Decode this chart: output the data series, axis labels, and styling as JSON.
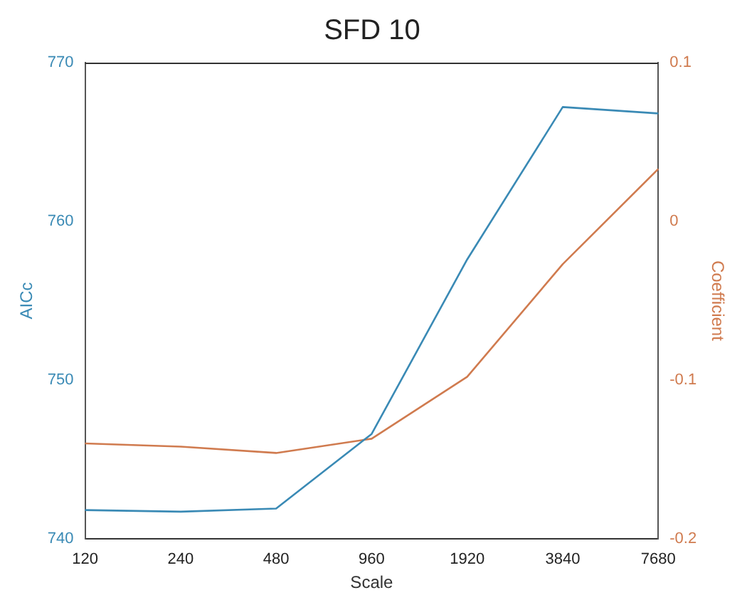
{
  "chart_data": {
    "type": "line",
    "title": "SFD 10",
    "xlabel": "Scale",
    "ylabel": "AICc",
    "y2label": "Coefficient",
    "categories": [
      "120",
      "240",
      "480",
      "960",
      "1920",
      "3840",
      "7680"
    ],
    "series": [
      {
        "color": "#3a8ab5",
        "values": [
          741.8,
          741.7,
          741.9,
          746.6,
          757.6,
          767.2,
          766.8
        ]
      },
      {
        "color": "#d07b4f",
        "axis": "y2",
        "values": [
          -0.14,
          -0.142,
          -0.146,
          -0.137,
          -0.098,
          -0.027,
          0.033
        ]
      }
    ],
    "ylim": [
      740,
      770
    ],
    "yticks": [
      740,
      750,
      760,
      770
    ],
    "y2lim": [
      -0.2,
      0.1
    ],
    "y2ticks": [
      -0.2,
      -0.1,
      0,
      0.1
    ],
    "grid": false,
    "legend": false,
    "marker": "none",
    "line_style": "solid"
  }
}
